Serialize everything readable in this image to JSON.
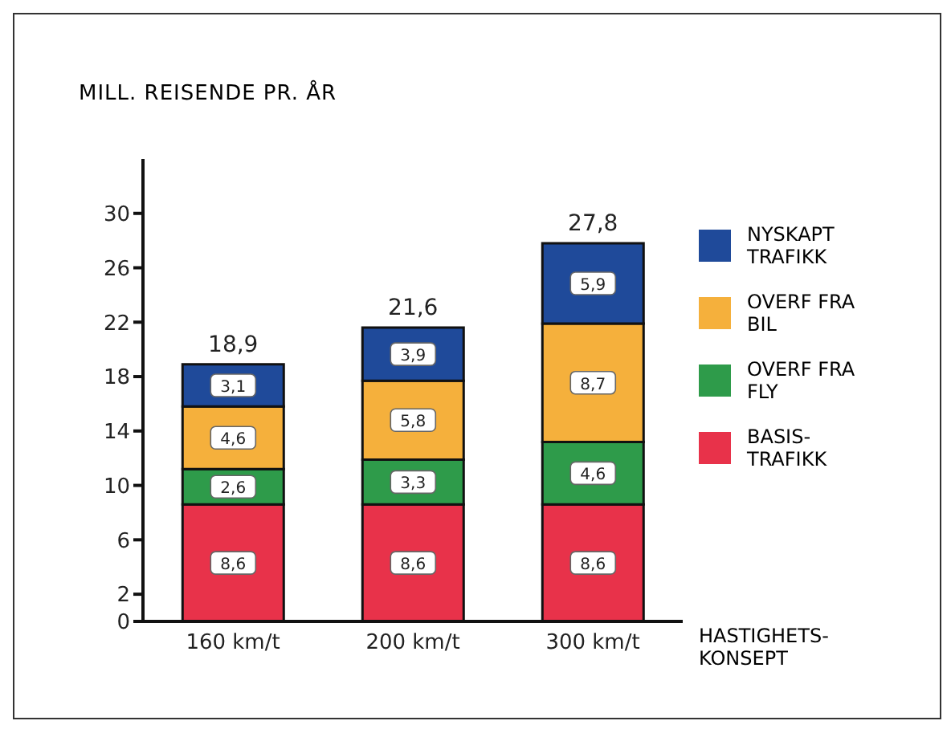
{
  "chart_data": {
    "type": "bar",
    "stacked": true,
    "ylabel": "MILL. REISENDE PR. ÅR",
    "xlabel": "HASTIGHETS-KONSEPT",
    "categories": [
      "160 km/t",
      "200 km/t",
      "300 km/t"
    ],
    "series": [
      {
        "name": "BASIS-TRAFIKK",
        "color": "#e8324a",
        "values": [
          8.6,
          8.6,
          8.6
        ],
        "value_labels": [
          "8,6",
          "8,6",
          "8,6"
        ]
      },
      {
        "name": "OVERF FRA FLY",
        "color": "#2e9b4a",
        "values": [
          2.6,
          3.3,
          4.6
        ],
        "value_labels": [
          "2,6",
          "3,3",
          "4,6"
        ]
      },
      {
        "name": "OVERF FRA BIL",
        "color": "#f5b03c",
        "values": [
          4.6,
          5.8,
          8.7
        ],
        "value_labels": [
          "4,6",
          "5,8",
          "8,7"
        ]
      },
      {
        "name": "NYSKAPT TRAFIKK",
        "color": "#1f4a9a",
        "values": [
          3.1,
          3.9,
          5.9
        ],
        "value_labels": [
          "3,1",
          "3,9",
          "5,9"
        ]
      }
    ],
    "totals": [
      "18,9",
      "21,6",
      "27,8"
    ],
    "ylim": [
      0,
      34
    ],
    "yticks": [
      0,
      2,
      6,
      10,
      14,
      18,
      22,
      26,
      30
    ],
    "grid": false,
    "legend": "right"
  }
}
